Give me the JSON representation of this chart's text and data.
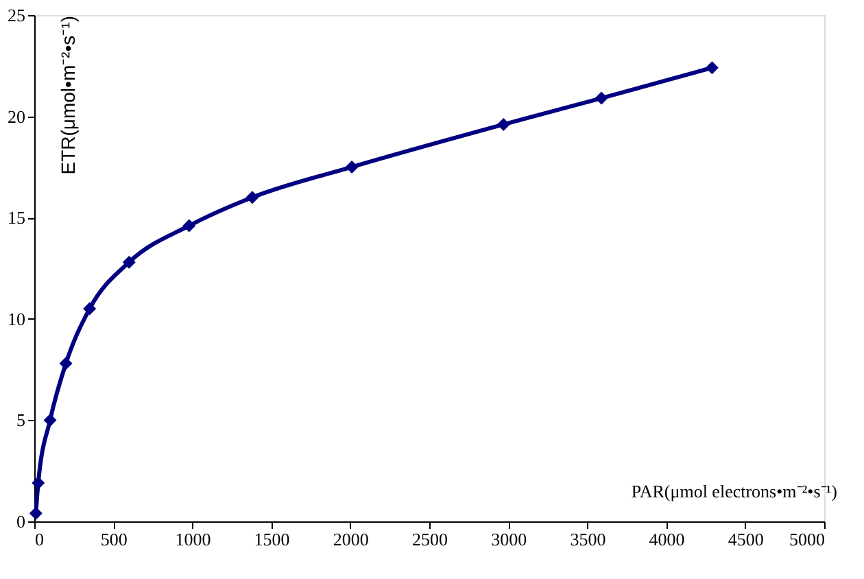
{
  "chart_data": {
    "type": "line",
    "xlabel": "PAR(μmol electrons•m⁻²•s⁻¹)",
    "ylabel": "ETR(μmol•m⁻²•s⁻¹)",
    "x": [
      10,
      25,
      100,
      200,
      350,
      600,
      980,
      1380,
      2010,
      2970,
      3590,
      4290
    ],
    "series": [
      {
        "color": "#000080",
        "values": [
          0.4,
          1.9,
          5.0,
          7.8,
          10.5,
          12.8,
          14.6,
          16.0,
          17.5,
          19.6,
          20.9,
          22.4
        ]
      }
    ],
    "xlim": [
      0,
      5000
    ],
    "xticks": [
      0,
      500,
      1000,
      1500,
      2000,
      2500,
      3000,
      3500,
      4000,
      4500,
      5000
    ],
    "ylim": [
      0,
      25
    ],
    "yticks": [
      0,
      5,
      10,
      15,
      20,
      25
    ],
    "grid": false,
    "legend": false,
    "marker": "diamond",
    "line_style": "solid"
  }
}
